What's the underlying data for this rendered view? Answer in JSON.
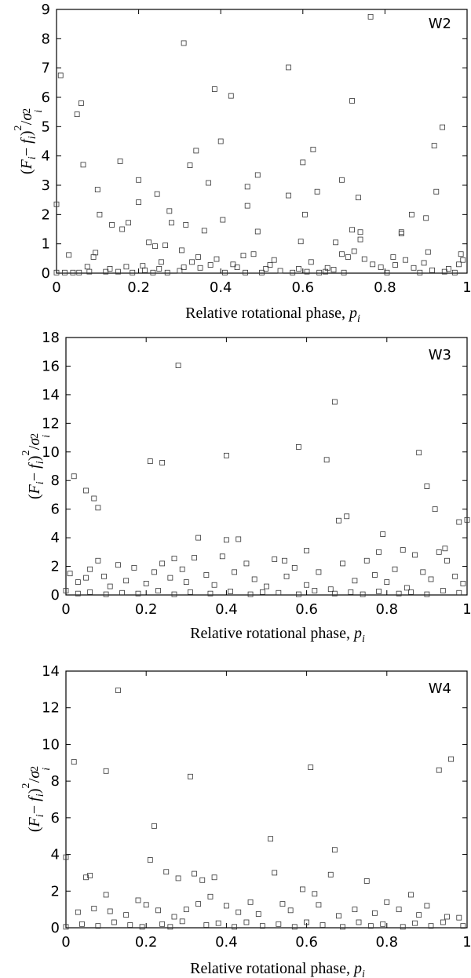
{
  "chart_data": [
    {
      "type": "scatter",
      "panel_label": "W2",
      "xlabel": "Relative rotational phase,",
      "xlabel_symbol": "p",
      "xlabel_subscript": "i",
      "ylabel": "(F_i − f_i)^2/σ_i^2",
      "xlim": [
        0,
        1
      ],
      "ylim": [
        0,
        9
      ],
      "xticks": [
        "0",
        "0.2",
        "0.4",
        "0.6",
        "0.8",
        "1"
      ],
      "yticks": [
        "0",
        "1",
        "2",
        "3",
        "4",
        "5",
        "6",
        "7",
        "8",
        "9"
      ],
      "marker": "open-square",
      "points": [
        [
          0.0,
          2.35
        ],
        [
          0.01,
          6.75
        ],
        [
          0.03,
          0.62
        ],
        [
          0.05,
          5.42
        ],
        [
          0.06,
          5.8
        ],
        [
          0.065,
          3.7
        ],
        [
          0.09,
          0.55
        ],
        [
          0.095,
          0.7
        ],
        [
          0.1,
          2.85
        ],
        [
          0.105,
          2.0
        ],
        [
          0.135,
          1.65
        ],
        [
          0.155,
          3.82
        ],
        [
          0.16,
          1.5
        ],
        [
          0.175,
          1.72
        ],
        [
          0.2,
          3.18
        ],
        [
          0.2,
          2.42
        ],
        [
          0.225,
          1.05
        ],
        [
          0.24,
          0.92
        ],
        [
          0.245,
          2.7
        ],
        [
          0.255,
          0.38
        ],
        [
          0.265,
          0.95
        ],
        [
          0.275,
          2.12
        ],
        [
          0.28,
          1.72
        ],
        [
          0.31,
          7.85
        ],
        [
          0.315,
          1.65
        ],
        [
          0.325,
          3.68
        ],
        [
          0.34,
          4.18
        ],
        [
          0.345,
          0.55
        ],
        [
          0.36,
          1.45
        ],
        [
          0.37,
          3.08
        ],
        [
          0.385,
          6.28
        ],
        [
          0.4,
          4.5
        ],
        [
          0.405,
          1.82
        ],
        [
          0.425,
          6.05
        ],
        [
          0.455,
          0.6
        ],
        [
          0.465,
          2.95
        ],
        [
          0.465,
          2.3
        ],
        [
          0.49,
          3.35
        ],
        [
          0.49,
          1.42
        ],
        [
          0.565,
          7.02
        ],
        [
          0.565,
          2.65
        ],
        [
          0.595,
          1.08
        ],
        [
          0.6,
          3.78
        ],
        [
          0.605,
          2.0
        ],
        [
          0.625,
          4.22
        ],
        [
          0.635,
          2.78
        ],
        [
          0.68,
          1.05
        ],
        [
          0.695,
          3.18
        ],
        [
          0.695,
          0.65
        ],
        [
          0.72,
          5.88
        ],
        [
          0.72,
          1.48
        ],
        [
          0.735,
          2.58
        ],
        [
          0.74,
          1.4
        ],
        [
          0.74,
          1.15
        ],
        [
          0.765,
          8.75
        ],
        [
          0.82,
          0.55
        ],
        [
          0.84,
          1.35
        ],
        [
          0.84,
          1.4
        ],
        [
          0.865,
          2.0
        ],
        [
          0.9,
          1.88
        ],
        [
          0.905,
          0.72
        ],
        [
          0.92,
          4.35
        ],
        [
          0.925,
          2.78
        ],
        [
          0.94,
          4.98
        ],
        [
          0.985,
          0.65
        ],
        [
          0.99,
          0.45
        ],
        [
          0.0,
          0.02
        ],
        [
          0.02,
          0.02
        ],
        [
          0.04,
          0.02
        ],
        [
          0.055,
          0.02
        ],
        [
          0.075,
          0.22
        ],
        [
          0.08,
          0.05
        ],
        [
          0.12,
          0.05
        ],
        [
          0.13,
          0.15
        ],
        [
          0.15,
          0.05
        ],
        [
          0.17,
          0.22
        ],
        [
          0.185,
          0.02
        ],
        [
          0.21,
          0.25
        ],
        [
          0.215,
          0.1
        ],
        [
          0.235,
          0.02
        ],
        [
          0.25,
          0.15
        ],
        [
          0.27,
          0.02
        ],
        [
          0.3,
          0.08
        ],
        [
          0.305,
          0.78
        ],
        [
          0.31,
          0.2
        ],
        [
          0.33,
          0.38
        ],
        [
          0.35,
          0.18
        ],
        [
          0.375,
          0.28
        ],
        [
          0.39,
          0.48
        ],
        [
          0.41,
          0.02
        ],
        [
          0.43,
          0.3
        ],
        [
          0.44,
          0.2
        ],
        [
          0.46,
          0.02
        ],
        [
          0.48,
          0.65
        ],
        [
          0.5,
          0.02
        ],
        [
          0.51,
          0.15
        ],
        [
          0.52,
          0.28
        ],
        [
          0.53,
          0.45
        ],
        [
          0.545,
          0.08
        ],
        [
          0.575,
          0.02
        ],
        [
          0.59,
          0.15
        ],
        [
          0.61,
          0.05
        ],
        [
          0.62,
          0.38
        ],
        [
          0.64,
          0.02
        ],
        [
          0.655,
          0.05
        ],
        [
          0.66,
          0.18
        ],
        [
          0.675,
          0.12
        ],
        [
          0.7,
          0.02
        ],
        [
          0.71,
          0.55
        ],
        [
          0.725,
          0.75
        ],
        [
          0.75,
          0.48
        ],
        [
          0.77,
          0.3
        ],
        [
          0.79,
          0.2
        ],
        [
          0.805,
          0.02
        ],
        [
          0.825,
          0.28
        ],
        [
          0.85,
          0.45
        ],
        [
          0.87,
          0.18
        ],
        [
          0.885,
          0.02
        ],
        [
          0.895,
          0.35
        ],
        [
          0.915,
          0.1
        ],
        [
          0.945,
          0.05
        ],
        [
          0.955,
          0.15
        ],
        [
          0.97,
          0.02
        ],
        [
          0.98,
          0.3
        ]
      ]
    },
    {
      "type": "scatter",
      "panel_label": "W3",
      "xlabel": "Relative rotational phase,",
      "xlabel_symbol": "p",
      "xlabel_subscript": "i",
      "ylabel": "(F_i − f_i)^2/σ_i^2",
      "xlim": [
        0,
        1
      ],
      "ylim": [
        0,
        18
      ],
      "xticks": [
        "0",
        "0.2",
        "0.4",
        "0.6",
        "0.8",
        "1"
      ],
      "yticks": [
        "0",
        "2",
        "4",
        "6",
        "8",
        "10",
        "12",
        "14",
        "16",
        "18"
      ],
      "marker": "open-square",
      "points": [
        [
          0.02,
          8.3
        ],
        [
          0.05,
          7.3
        ],
        [
          0.07,
          6.75
        ],
        [
          0.08,
          6.1
        ],
        [
          0.21,
          9.35
        ],
        [
          0.24,
          9.25
        ],
        [
          0.28,
          16.05
        ],
        [
          0.33,
          4.0
        ],
        [
          0.4,
          3.85
        ],
        [
          0.4,
          9.75
        ],
        [
          0.43,
          3.9
        ],
        [
          0.58,
          10.35
        ],
        [
          0.65,
          9.45
        ],
        [
          0.67,
          13.5
        ],
        [
          0.68,
          5.2
        ],
        [
          0.7,
          5.5
        ],
        [
          0.79,
          4.25
        ],
        [
          0.88,
          9.95
        ],
        [
          0.9,
          7.6
        ],
        [
          0.92,
          6.0
        ],
        [
          0.98,
          5.1
        ],
        [
          1.0,
          5.25
        ],
        [
          0.945,
          3.25
        ],
        [
          0.93,
          3.0
        ],
        [
          0.84,
          3.15
        ],
        [
          0.78,
          3.0
        ],
        [
          0.6,
          3.1
        ],
        [
          0.545,
          2.4
        ],
        [
          0.39,
          2.7
        ],
        [
          0.27,
          2.55
        ],
        [
          0.01,
          1.5
        ],
        [
          0.03,
          0.9
        ],
        [
          0.05,
          1.2
        ],
        [
          0.06,
          1.8
        ],
        [
          0.08,
          2.4
        ],
        [
          0.095,
          1.3
        ],
        [
          0.11,
          0.6
        ],
        [
          0.13,
          2.1
        ],
        [
          0.15,
          1.0
        ],
        [
          0.17,
          1.9
        ],
        [
          0.2,
          0.8
        ],
        [
          0.22,
          1.6
        ],
        [
          0.24,
          2.2
        ],
        [
          0.26,
          1.2
        ],
        [
          0.29,
          1.8
        ],
        [
          0.3,
          0.9
        ],
        [
          0.32,
          2.6
        ],
        [
          0.35,
          1.4
        ],
        [
          0.37,
          0.7
        ],
        [
          0.42,
          1.6
        ],
        [
          0.45,
          2.2
        ],
        [
          0.47,
          1.1
        ],
        [
          0.5,
          0.6
        ],
        [
          0.52,
          2.5
        ],
        [
          0.55,
          1.3
        ],
        [
          0.57,
          1.9
        ],
        [
          0.6,
          0.7
        ],
        [
          0.63,
          1.6
        ],
        [
          0.66,
          0.4
        ],
        [
          0.69,
          2.2
        ],
        [
          0.72,
          1.0
        ],
        [
          0.75,
          2.4
        ],
        [
          0.77,
          1.4
        ],
        [
          0.8,
          0.9
        ],
        [
          0.82,
          1.8
        ],
        [
          0.85,
          0.5
        ],
        [
          0.87,
          2.8
        ],
        [
          0.89,
          1.6
        ],
        [
          0.91,
          1.1
        ],
        [
          0.95,
          2.4
        ],
        [
          0.97,
          1.3
        ],
        [
          0.99,
          0.8
        ],
        [
          0.0,
          0.3
        ],
        [
          0.03,
          0.1
        ],
        [
          0.06,
          0.2
        ],
        [
          0.1,
          0.05
        ],
        [
          0.14,
          0.15
        ],
        [
          0.18,
          0.1
        ],
        [
          0.23,
          0.3
        ],
        [
          0.27,
          0.05
        ],
        [
          0.31,
          0.2
        ],
        [
          0.36,
          0.1
        ],
        [
          0.41,
          0.25
        ],
        [
          0.46,
          0.05
        ],
        [
          0.49,
          0.2
        ],
        [
          0.53,
          0.15
        ],
        [
          0.58,
          0.05
        ],
        [
          0.62,
          0.3
        ],
        [
          0.67,
          0.1
        ],
        [
          0.71,
          0.2
        ],
        [
          0.74,
          0.05
        ],
        [
          0.78,
          0.25
        ],
        [
          0.83,
          0.1
        ],
        [
          0.86,
          0.2
        ],
        [
          0.9,
          0.05
        ],
        [
          0.94,
          0.3
        ],
        [
          0.98,
          0.15
        ]
      ]
    },
    {
      "type": "scatter",
      "panel_label": "W4",
      "xlabel": "Relative rotational phase,",
      "xlabel_symbol": "p",
      "xlabel_subscript": "i",
      "ylabel": "(F_i − f_i)^2/σ_i^2",
      "xlim": [
        0,
        1
      ],
      "ylim": [
        0,
        14
      ],
      "xticks": [
        "0",
        "0.2",
        "0.4",
        "0.6",
        "0.8",
        "1"
      ],
      "yticks": [
        "0",
        "2",
        "4",
        "6",
        "8",
        "10",
        "12",
        "14"
      ],
      "marker": "open-square",
      "points": [
        [
          0.0,
          3.85
        ],
        [
          0.02,
          9.05
        ],
        [
          0.1,
          8.55
        ],
        [
          0.13,
          12.95
        ],
        [
          0.22,
          5.55
        ],
        [
          0.31,
          8.25
        ],
        [
          0.51,
          4.85
        ],
        [
          0.61,
          8.75
        ],
        [
          0.67,
          4.25
        ],
        [
          0.93,
          8.6
        ],
        [
          0.96,
          9.2
        ],
        [
          0.05,
          2.75
        ],
        [
          0.06,
          2.85
        ],
        [
          0.1,
          1.8
        ],
        [
          0.21,
          3.7
        ],
        [
          0.25,
          3.05
        ],
        [
          0.28,
          2.7
        ],
        [
          0.32,
          2.95
        ],
        [
          0.34,
          2.6
        ],
        [
          0.37,
          2.75
        ],
        [
          0.52,
          3.0
        ],
        [
          0.59,
          2.1
        ],
        [
          0.62,
          1.85
        ],
        [
          0.66,
          2.9
        ],
        [
          0.75,
          2.55
        ],
        [
          0.86,
          1.8
        ],
        [
          0.03,
          0.85
        ],
        [
          0.07,
          1.05
        ],
        [
          0.11,
          0.9
        ],
        [
          0.15,
          0.7
        ],
        [
          0.18,
          1.5
        ],
        [
          0.2,
          1.25
        ],
        [
          0.23,
          0.95
        ],
        [
          0.27,
          0.6
        ],
        [
          0.3,
          1.0
        ],
        [
          0.33,
          1.3
        ],
        [
          0.36,
          1.7
        ],
        [
          0.4,
          1.2
        ],
        [
          0.43,
          0.85
        ],
        [
          0.46,
          1.4
        ],
        [
          0.48,
          0.75
        ],
        [
          0.54,
          1.3
        ],
        [
          0.56,
          0.95
        ],
        [
          0.63,
          1.25
        ],
        [
          0.68,
          0.65
        ],
        [
          0.72,
          1.0
        ],
        [
          0.77,
          0.8
        ],
        [
          0.8,
          1.4
        ],
        [
          0.83,
          1.0
        ],
        [
          0.88,
          0.7
        ],
        [
          0.9,
          1.2
        ],
        [
          0.95,
          0.6
        ],
        [
          0.98,
          0.55
        ],
        [
          0.0,
          0.05
        ],
        [
          0.04,
          0.2
        ],
        [
          0.08,
          0.1
        ],
        [
          0.12,
          0.3
        ],
        [
          0.16,
          0.15
        ],
        [
          0.19,
          0.05
        ],
        [
          0.24,
          0.2
        ],
        [
          0.26,
          0.05
        ],
        [
          0.29,
          0.35
        ],
        [
          0.35,
          0.15
        ],
        [
          0.38,
          0.25
        ],
        [
          0.42,
          0.05
        ],
        [
          0.45,
          0.3
        ],
        [
          0.49,
          0.1
        ],
        [
          0.53,
          0.2
        ],
        [
          0.57,
          0.05
        ],
        [
          0.6,
          0.3
        ],
        [
          0.64,
          0.15
        ],
        [
          0.69,
          0.05
        ],
        [
          0.73,
          0.3
        ],
        [
          0.76,
          0.1
        ],
        [
          0.79,
          0.2
        ],
        [
          0.84,
          0.05
        ],
        [
          0.87,
          0.25
        ],
        [
          0.91,
          0.1
        ],
        [
          0.94,
          0.3
        ],
        [
          0.99,
          0.1
        ]
      ]
    }
  ]
}
